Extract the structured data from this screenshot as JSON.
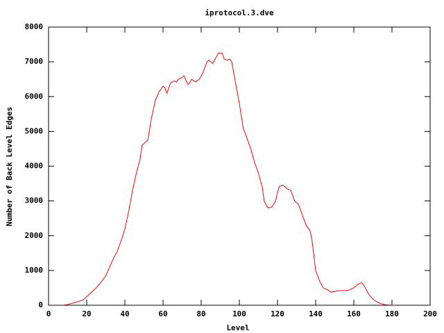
{
  "chart_data": {
    "type": "line",
    "title": "iprotocol.3.dve",
    "x_label": "Level",
    "y_label": "Number of Back Level Edges",
    "color": "#ff0000",
    "x": [
      7,
      10,
      15,
      18,
      20,
      22,
      25,
      28,
      30,
      32,
      34,
      36,
      38,
      40,
      42,
      44,
      46,
      48,
      49,
      51,
      52,
      54,
      56,
      58,
      60,
      61,
      62,
      64,
      66,
      67,
      68,
      70,
      71,
      73,
      74,
      75,
      77,
      79,
      81,
      83,
      84,
      86,
      88,
      89,
      91,
      92,
      94,
      95,
      96,
      98,
      100,
      102,
      104,
      106,
      108,
      110,
      112,
      113,
      115,
      117,
      119,
      120,
      121,
      123,
      125,
      127,
      129,
      131,
      133,
      135,
      137,
      138,
      140,
      142,
      144,
      146,
      148,
      150,
      152,
      156,
      158,
      160,
      162,
      164,
      165,
      166,
      168,
      170,
      172,
      174,
      176,
      178,
      182
    ],
    "values": [
      0,
      20,
      100,
      150,
      250,
      350,
      500,
      700,
      850,
      1100,
      1350,
      1550,
      1850,
      2200,
      2700,
      3300,
      3800,
      4200,
      4600,
      4700,
      4750,
      5400,
      5900,
      6150,
      6300,
      6250,
      6100,
      6400,
      6450,
      6420,
      6500,
      6550,
      6600,
      6350,
      6400,
      6500,
      6420,
      6500,
      6700,
      7000,
      7050,
      6950,
      7150,
      7250,
      7250,
      7080,
      7050,
      7080,
      7000,
      6400,
      5800,
      5100,
      4800,
      4500,
      4100,
      3800,
      3400,
      3000,
      2800,
      2820,
      3000,
      3250,
      3420,
      3450,
      3350,
      3300,
      3000,
      2900,
      2600,
      2300,
      2150,
      1900,
      1000,
      700,
      500,
      450,
      380,
      400,
      420,
      420,
      450,
      500,
      600,
      650,
      600,
      500,
      300,
      180,
      100,
      50,
      20,
      10,
      0
    ],
    "xlim": [
      0,
      200
    ],
    "xticks": [
      0,
      20,
      40,
      60,
      80,
      100,
      120,
      140,
      160,
      180,
      200
    ],
    "ylim": [
      0,
      8000
    ],
    "yticks": [
      0,
      1000,
      2000,
      3000,
      4000,
      5000,
      6000,
      7000,
      8000
    ]
  }
}
